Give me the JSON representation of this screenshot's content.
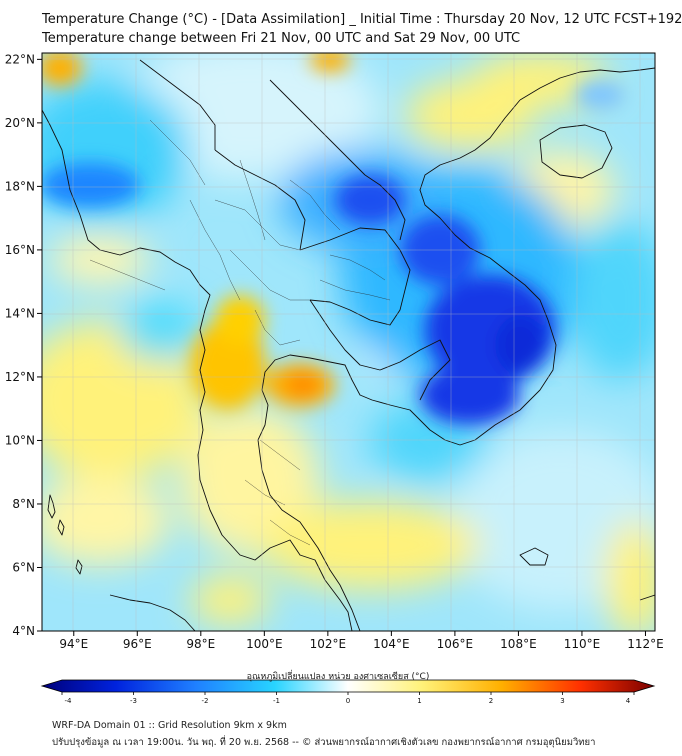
{
  "header": {
    "title_line1": "Temperature Change (°C) - [Data Assimilation] _ Initial Time : Thursday 20 Nov, 12 UTC FCST+192",
    "title_line2": "Temperature change between Fri 21 Nov, 00 UTC and Sat 29 Nov, 00 UTC"
  },
  "map": {
    "lon_labels": [
      "94°E",
      "96°E",
      "98°E",
      "100°E",
      "102°E",
      "104°E",
      "106°E",
      "108°E",
      "110°E",
      "112°E"
    ],
    "lat_labels": [
      "22°N",
      "20°N",
      "18°N",
      "16°N",
      "14°N",
      "12°N",
      "10°N",
      "8°N",
      "6°N",
      "4°N"
    ],
    "lon_range": [
      93,
      112.3
    ],
    "lat_range": [
      4,
      22.2
    ]
  },
  "colorbar": {
    "label": "อุณหภูมิเปลี่ยนแปลง หน่วย องศาเซลเซียส (°C)",
    "ticks": [
      "-4",
      "-3",
      "-2",
      "-1",
      "0",
      "1",
      "2",
      "3",
      "4"
    ],
    "range": [
      -4,
      4
    ],
    "colors": [
      "#00007a",
      "#0022dd",
      "#1f7fff",
      "#28d4ff",
      "#ffffff",
      "#fff27a",
      "#ffb000",
      "#ff3000",
      "#7a0000"
    ]
  },
  "footer": {
    "line1": "WRF-DA Domain 01 :: Grid Resolution 9km x 9km",
    "line2": "ปรับปรุงข้อมูล ณ เวลา 19:00น. วัน พฤ. ที่ 20 พ.ย. 2568 -- © ส่วนพยากรณ์อากาศเชิงตัวเลข กองพยากรณ์อากาศ กรมอุตุนิยมวิทยา"
  }
}
